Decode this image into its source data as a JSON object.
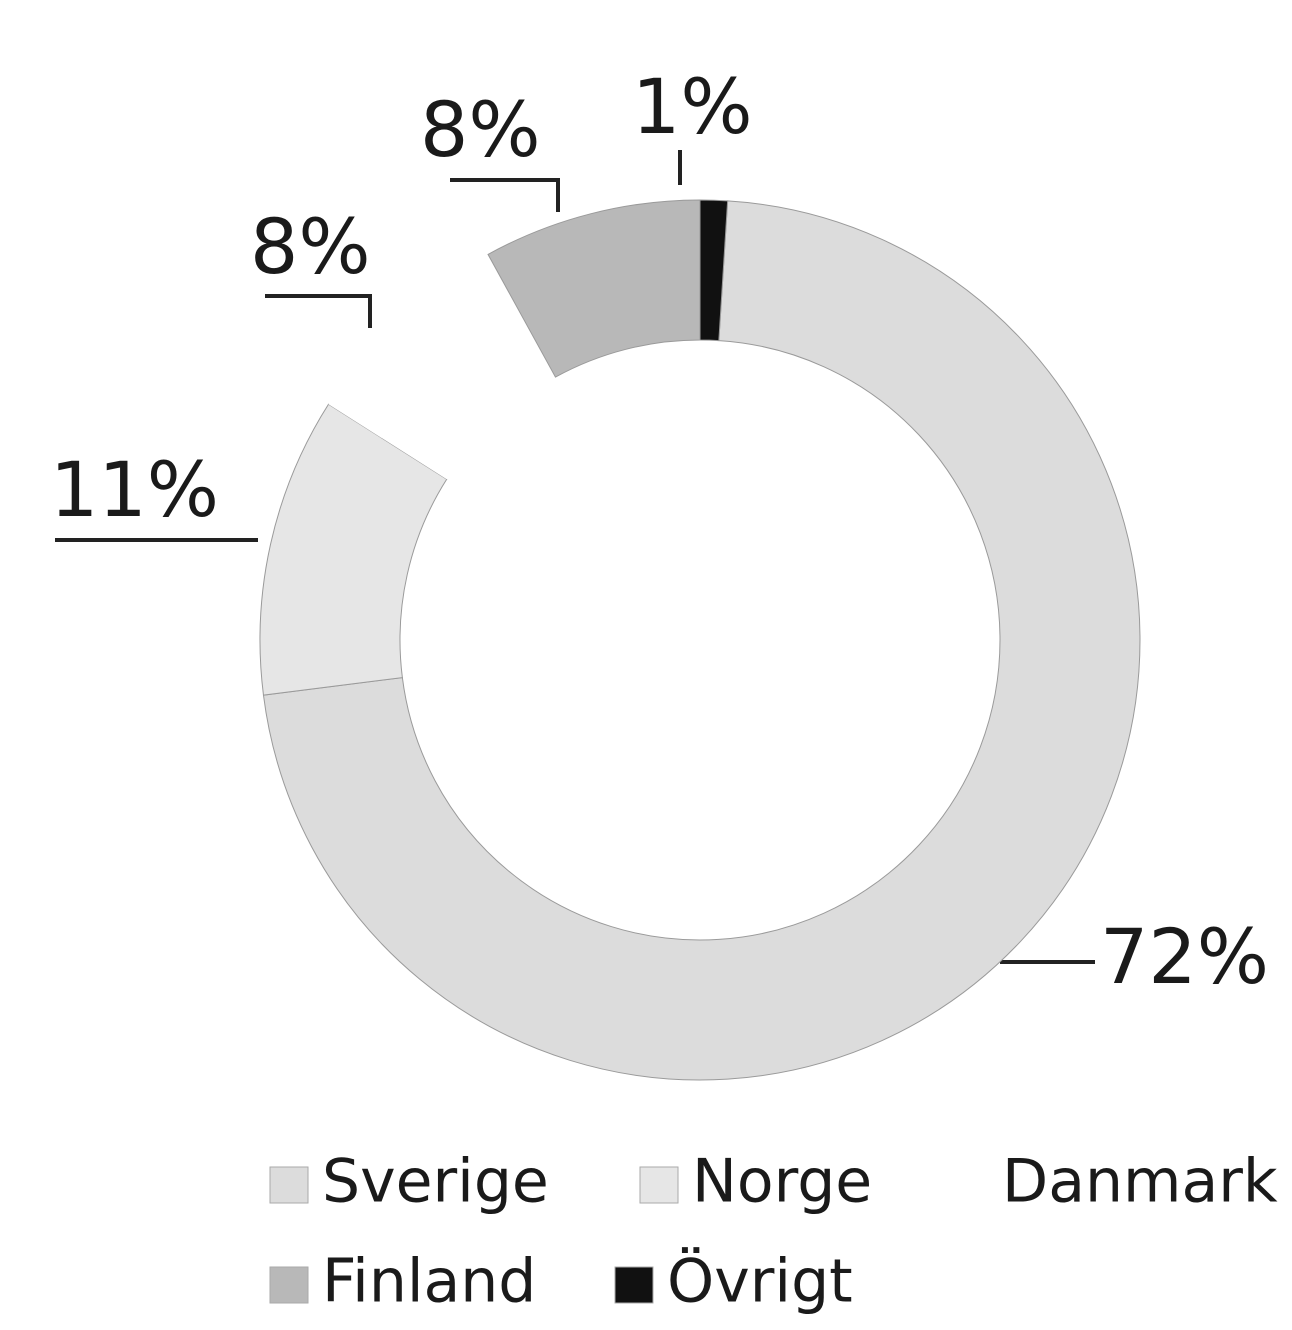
{
  "chart_data": {
    "type": "donut",
    "categories": [
      "Sverige",
      "Norge",
      "Danmark",
      "Finland",
      "Övrigt"
    ],
    "values": [
      72,
      11,
      8,
      8,
      1
    ],
    "value_labels": [
      "72%",
      "11%",
      "8%",
      "8%",
      "1%"
    ],
    "colors": [
      "#dcdcdc",
      "#e6e6e6",
      "#ffffff",
      "#b8b8b8",
      "#111111"
    ],
    "legend": "bottom"
  }
}
